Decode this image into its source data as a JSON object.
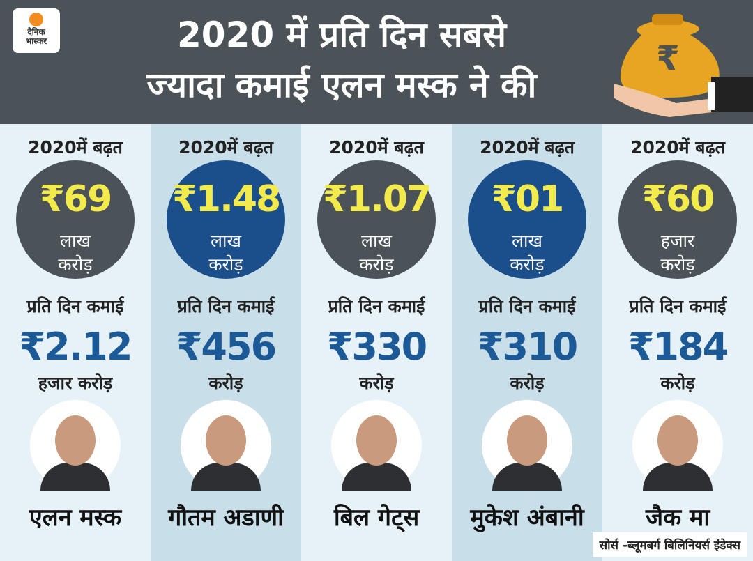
{
  "header": {
    "logo": [
      "दैनिक",
      "भास्कर"
    ],
    "title": [
      "2020 में प्रति दिन सबसे",
      "ज्यादा कमाई एलन मस्क ने की"
    ]
  },
  "columns": [
    {
      "growth_label": "2020में बढ़त",
      "growth_value": "₹69",
      "growth_unit": [
        "लाख",
        "करोड़"
      ],
      "daily_label": "प्रति दिन कमाई",
      "daily_value": "₹2.12",
      "daily_unit": "हजार करोड़",
      "name": "एलन मस्क"
    },
    {
      "growth_label": "2020में बढ़त",
      "growth_value": "₹1.48",
      "growth_unit": [
        "लाख",
        "करोड़"
      ],
      "daily_label": "प्रति दिन कमाई",
      "daily_value": "₹456",
      "daily_unit": "करोड़",
      "name": "गौतम अडाणी"
    },
    {
      "growth_label": "2020में बढ़त",
      "growth_value": "₹1.07",
      "growth_unit": [
        "लाख",
        "करोड़"
      ],
      "daily_label": "प्रति दिन कमाई",
      "daily_value": "₹330",
      "daily_unit": "करोड़",
      "name": "बिल गेट्स"
    },
    {
      "growth_label": "2020में बढ़त",
      "growth_value": "₹01",
      "growth_unit": [
        "लाख",
        "करोड़"
      ],
      "daily_label": "प्रति दिन कमाई",
      "daily_value": "₹310",
      "daily_unit": "करोड़",
      "name": "मुकेश अंबानी"
    },
    {
      "growth_label": "2020में बढ़त",
      "growth_value": "₹60",
      "growth_unit": [
        "हजार",
        "करोड़"
      ],
      "daily_label": "प्रति दिन कमाई",
      "daily_value": "₹184",
      "daily_unit": "करोड़",
      "name": "जैक मा"
    }
  ],
  "source": "सोर्स -ब्लूमबर्ग बिलिनियर्स इंडेक्स"
}
